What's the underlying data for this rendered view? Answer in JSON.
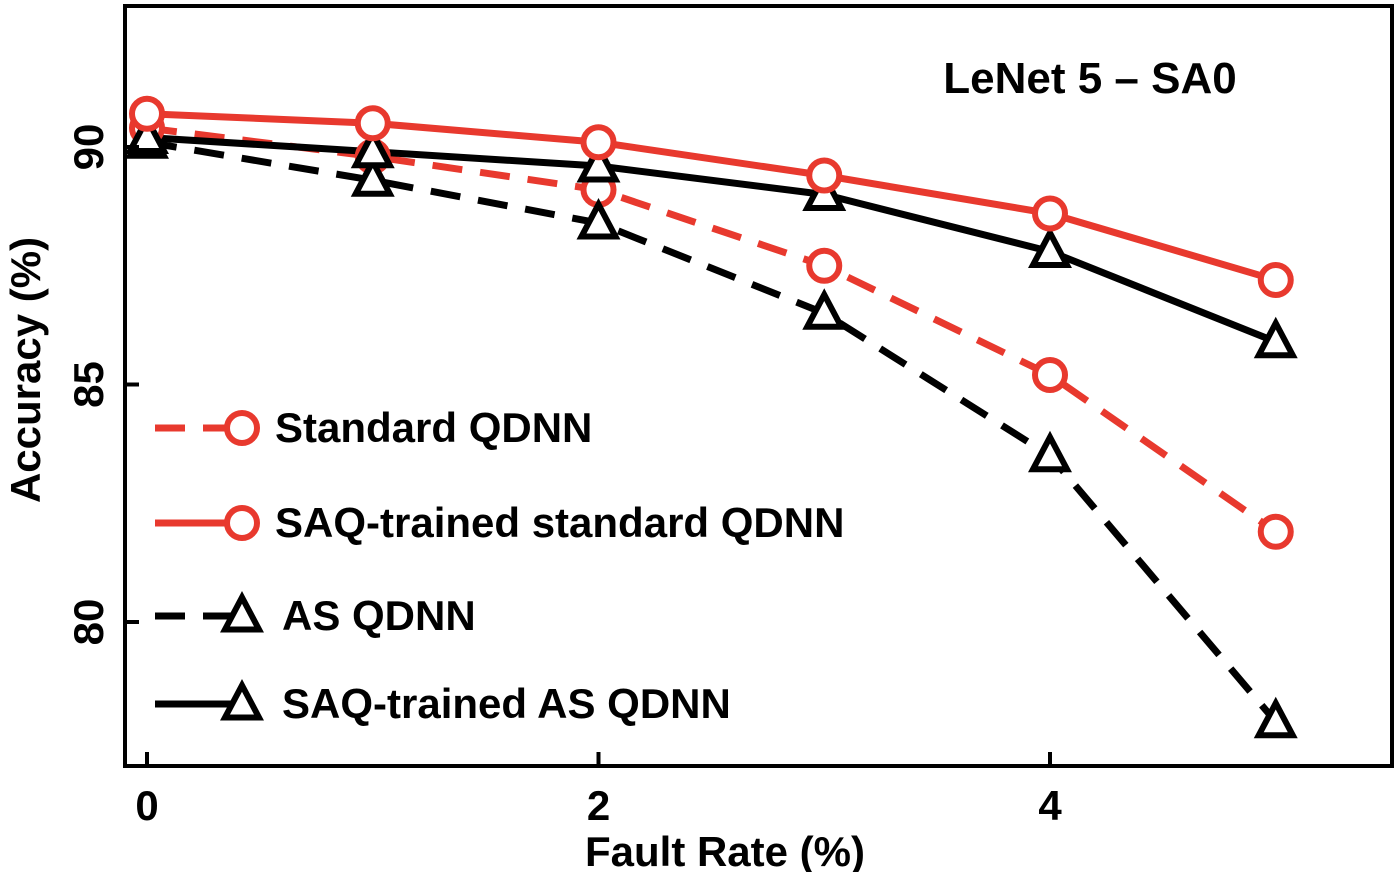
{
  "chart_data": {
    "type": "line",
    "title": "LeNet 5 – SA0",
    "xlabel": "Fault Rate (%)",
    "ylabel": "Accuracy (%)",
    "xlim": [
      -0.1,
      5.5
    ],
    "ylim": [
      77,
      93
    ],
    "x_ticks": [
      0,
      2,
      4
    ],
    "x_tick_labels": [
      "0",
      "2",
      "4"
    ],
    "y_ticks": [
      80,
      85,
      90
    ],
    "y_tick_labels": [
      "80",
      "85",
      "90"
    ],
    "grid": false,
    "legend_position": "bottom-left",
    "x": [
      0,
      1,
      2,
      3,
      4,
      5
    ],
    "series": [
      {
        "name": "Standard QDNN",
        "values": [
          90.4,
          89.8,
          89.1,
          87.5,
          85.2,
          81.9
        ],
        "color": "#e8392e",
        "line_style": "dashed",
        "marker": "circle"
      },
      {
        "name": "SAQ-trained standard QDNN",
        "values": [
          90.7,
          90.5,
          90.1,
          89.4,
          88.6,
          87.2
        ],
        "color": "#e8392e",
        "line_style": "solid",
        "marker": "circle"
      },
      {
        "name": "AS QDNN",
        "values": [
          90.1,
          89.3,
          88.4,
          86.5,
          83.5,
          77.9
        ],
        "color": "#000000",
        "line_style": "dashed",
        "marker": "triangle"
      },
      {
        "name": "SAQ-trained AS QDNN",
        "values": [
          90.2,
          89.9,
          89.6,
          89.0,
          87.8,
          85.9
        ],
        "color": "#000000",
        "line_style": "solid",
        "marker": "triangle"
      }
    ]
  }
}
